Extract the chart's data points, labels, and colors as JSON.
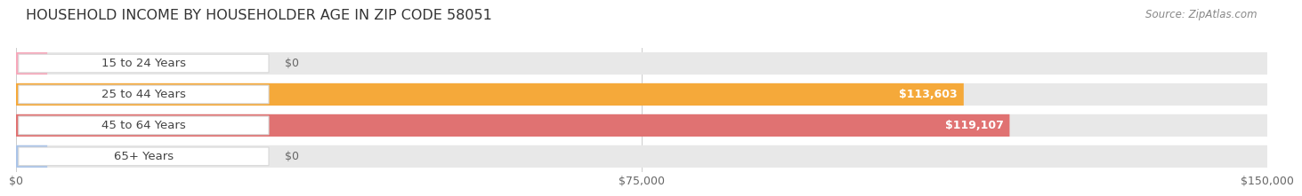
{
  "title": "HOUSEHOLD INCOME BY HOUSEHOLDER AGE IN ZIP CODE 58051",
  "source": "Source: ZipAtlas.com",
  "categories": [
    "15 to 24 Years",
    "25 to 44 Years",
    "45 to 64 Years",
    "65+ Years"
  ],
  "values": [
    0,
    113603,
    119107,
    0
  ],
  "bar_colors": [
    "#f7a8bb",
    "#f5a93a",
    "#e07272",
    "#aac4e8"
  ],
  "background_color": "#ffffff",
  "bg_bar_color": "#e8e8e8",
  "xlim": [
    0,
    150000
  ],
  "xtick_labels": [
    "$0",
    "$75,000",
    "$150,000"
  ],
  "title_fontsize": 11.5,
  "label_fontsize": 9.5,
  "value_fontsize": 9,
  "source_fontsize": 8.5
}
